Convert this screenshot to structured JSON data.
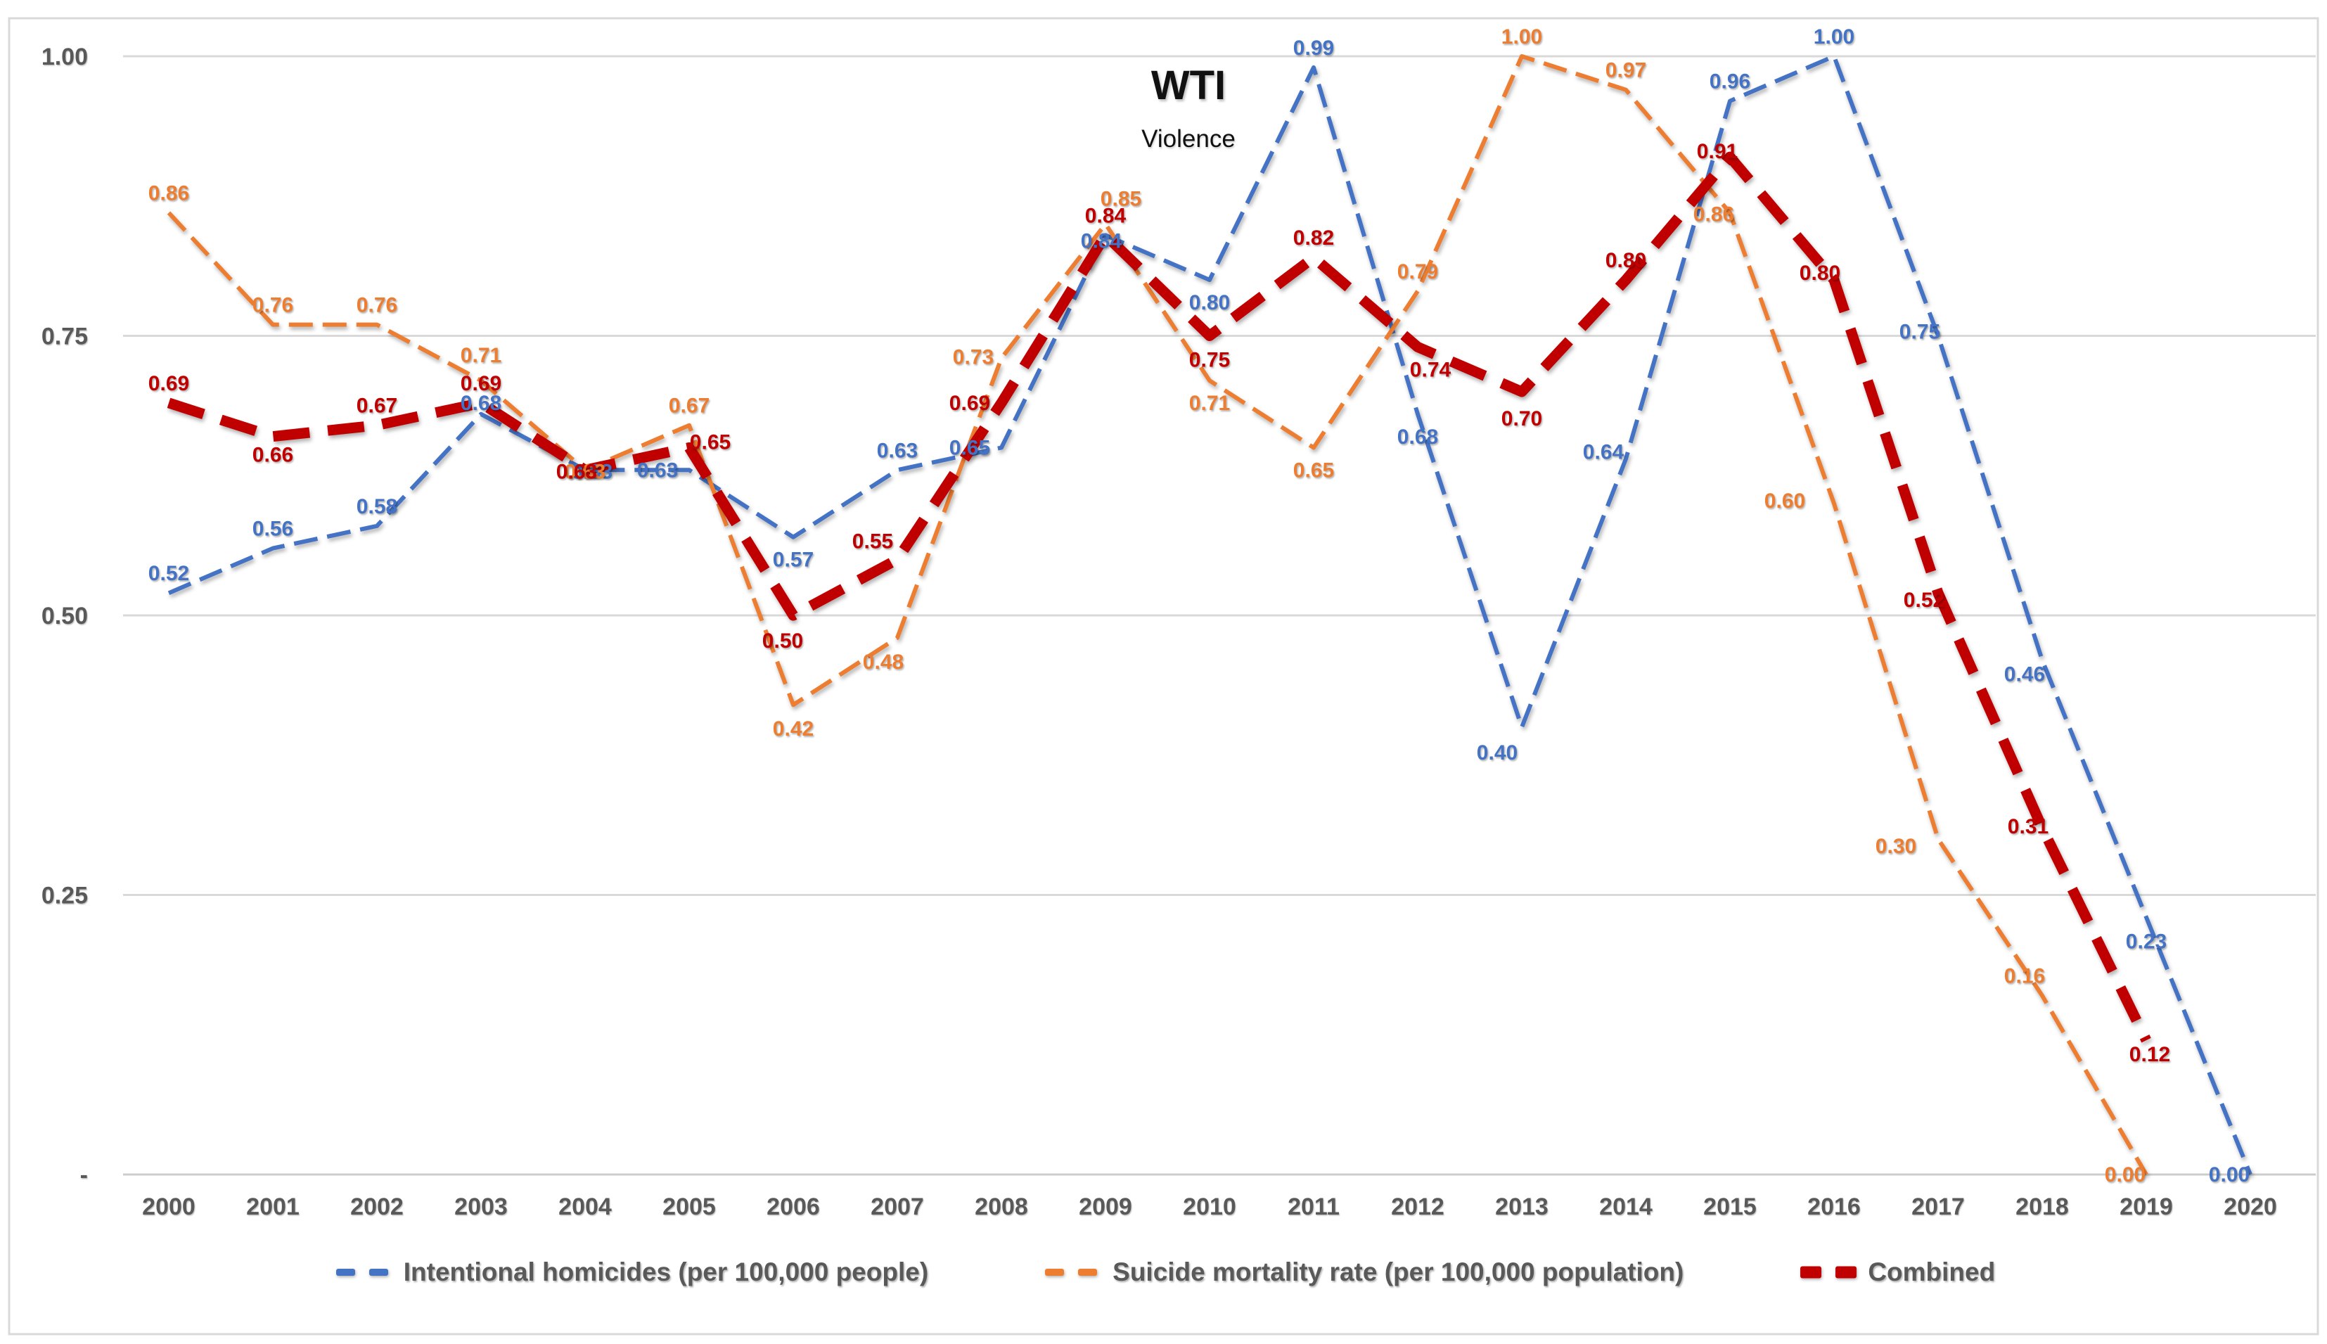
{
  "chart_data": {
    "type": "line",
    "title": "WTI",
    "subtitle": "Violence",
    "x": [
      "2000",
      "2001",
      "2002",
      "2003",
      "2004",
      "2005",
      "2006",
      "2007",
      "2008",
      "2009",
      "2010",
      "2011",
      "2012",
      "2013",
      "2014",
      "2015",
      "2016",
      "2017",
      "2018",
      "2019",
      "2020"
    ],
    "series": [
      {
        "name": "Intentional homicides (per 100,000 people)",
        "color": "#4472C4",
        "line_weight": "thin",
        "line_style": "dashed",
        "values": [
          0.52,
          0.56,
          0.58,
          0.68,
          0.63,
          0.63,
          0.57,
          0.63,
          0.65,
          0.84,
          0.8,
          0.99,
          0.68,
          0.4,
          0.64,
          0.96,
          1.0,
          0.75,
          0.46,
          0.23,
          0.0
        ]
      },
      {
        "name": "Suicide mortality rate (per 100,000 population)",
        "color": "#ED7D31",
        "line_weight": "thin",
        "line_style": "dashed",
        "values": [
          0.86,
          0.76,
          0.76,
          0.71,
          0.63,
          0.67,
          0.42,
          0.48,
          0.73,
          0.85,
          0.71,
          0.65,
          0.79,
          1.0,
          0.97,
          0.86,
          0.6,
          0.3,
          0.16,
          0.0,
          null
        ]
      },
      {
        "name": "Combined",
        "color": "#C00000",
        "line_weight": "thick",
        "line_style": "dashed",
        "values": [
          0.69,
          0.66,
          0.67,
          0.69,
          0.63,
          0.65,
          0.5,
          0.55,
          0.69,
          0.84,
          0.75,
          0.82,
          0.74,
          0.7,
          0.8,
          0.91,
          0.8,
          0.52,
          0.31,
          0.12,
          null
        ]
      }
    ],
    "y_axis": {
      "ticks": [
        "1.00",
        "0.75",
        "0.50",
        "0.25",
        "-"
      ],
      "tick_values": [
        1.0,
        0.75,
        0.5,
        0.25,
        0.0
      ],
      "range": [
        0,
        1
      ]
    },
    "xlabel": "",
    "ylabel": "",
    "grid": true,
    "legend_position": "bottom",
    "colors": {
      "axis_text": "#595959",
      "gridline": "#D9D9D9",
      "background": "#ffffff"
    }
  }
}
